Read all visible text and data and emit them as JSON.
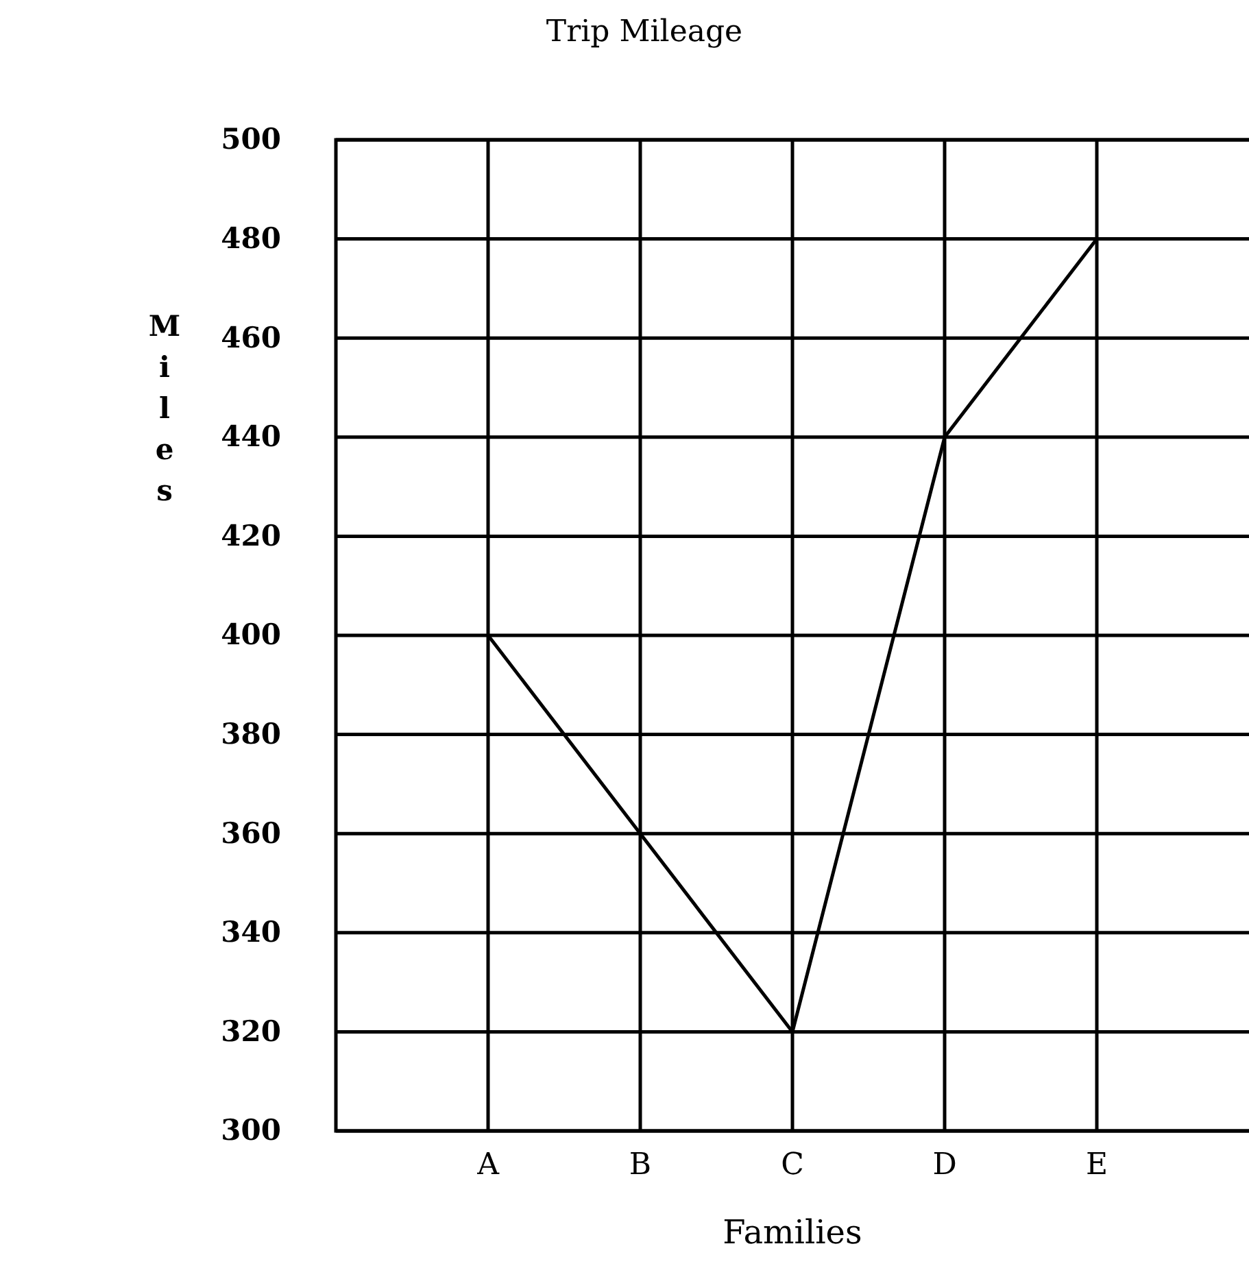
{
  "chart_data": {
    "type": "line",
    "title": "Trip Mileage",
    "xlabel": "Families",
    "ylabel": "Miles",
    "categories": [
      "A",
      "B",
      "C",
      "D",
      "E"
    ],
    "series": [
      {
        "color": "#000000",
        "values": [
          400,
          360,
          320,
          440,
          480
        ]
      }
    ],
    "ylim": [
      300,
      500
    ],
    "yticks": [
      300,
      320,
      340,
      360,
      380,
      400,
      420,
      440,
      460,
      480,
      500
    ],
    "grid": true,
    "marker": "none",
    "line_style": "solid"
  }
}
